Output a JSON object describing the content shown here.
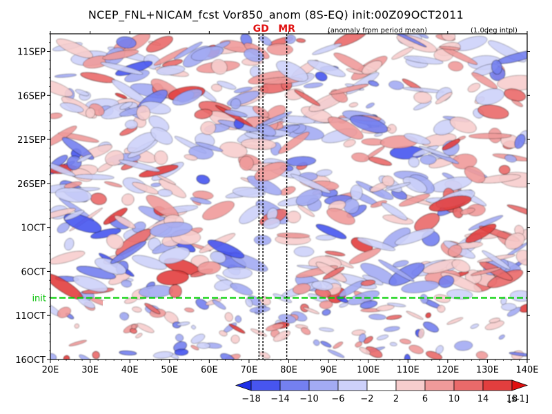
{
  "chart_data": {
    "type": "heatmap",
    "title": "NCEP_FNL+NICAM_fcst Vor850_anom (8S-EQ) init:00Z09OCT2011",
    "subtitle_left": "(anomaly from period mean)",
    "subtitle_right": "(1.0deg intpl)",
    "x_tick_labels": [
      "20E",
      "30E",
      "40E",
      "50E",
      "60E",
      "70E",
      "80E",
      "90E",
      "100E",
      "110E",
      "120E",
      "130E",
      "140E"
    ],
    "x_tick_values": [
      20,
      30,
      40,
      50,
      60,
      70,
      80,
      90,
      100,
      110,
      120,
      130,
      140
    ],
    "xlim": [
      20,
      140
    ],
    "y_tick_labels": [
      "11SEP",
      "16SEP",
      "21SEP",
      "26SEP",
      "1OCT",
      "6OCT",
      "11OCT",
      "16OCT"
    ],
    "y_tick_days": [
      0,
      5,
      10,
      15,
      20,
      25,
      30,
      35
    ],
    "ylim_days": [
      -2,
      35
    ],
    "init_label": "init",
    "init_day": 28,
    "markers": [
      {
        "label": "GD",
        "lons": [
          72.5,
          73.5
        ]
      },
      {
        "label": "MR",
        "lons": [
          79.5
        ]
      }
    ],
    "colorbar": {
      "tick_labels": [
        "−18",
        "−14",
        "−10",
        "−6",
        "−2",
        "2",
        "6",
        "10",
        "14",
        "18"
      ],
      "unit": "[s-1]",
      "colors": [
        "#1e2fe6",
        "#4755ef",
        "#7480f0",
        "#a3abf3",
        "#cdd1fa",
        "#ffffff",
        "#f7cdcd",
        "#f09a9a",
        "#ea6a6a",
        "#e23e3e",
        "#e11010"
      ]
    },
    "colors": {
      "init_line": "#00d000",
      "marker_text": "#e01010"
    }
  }
}
